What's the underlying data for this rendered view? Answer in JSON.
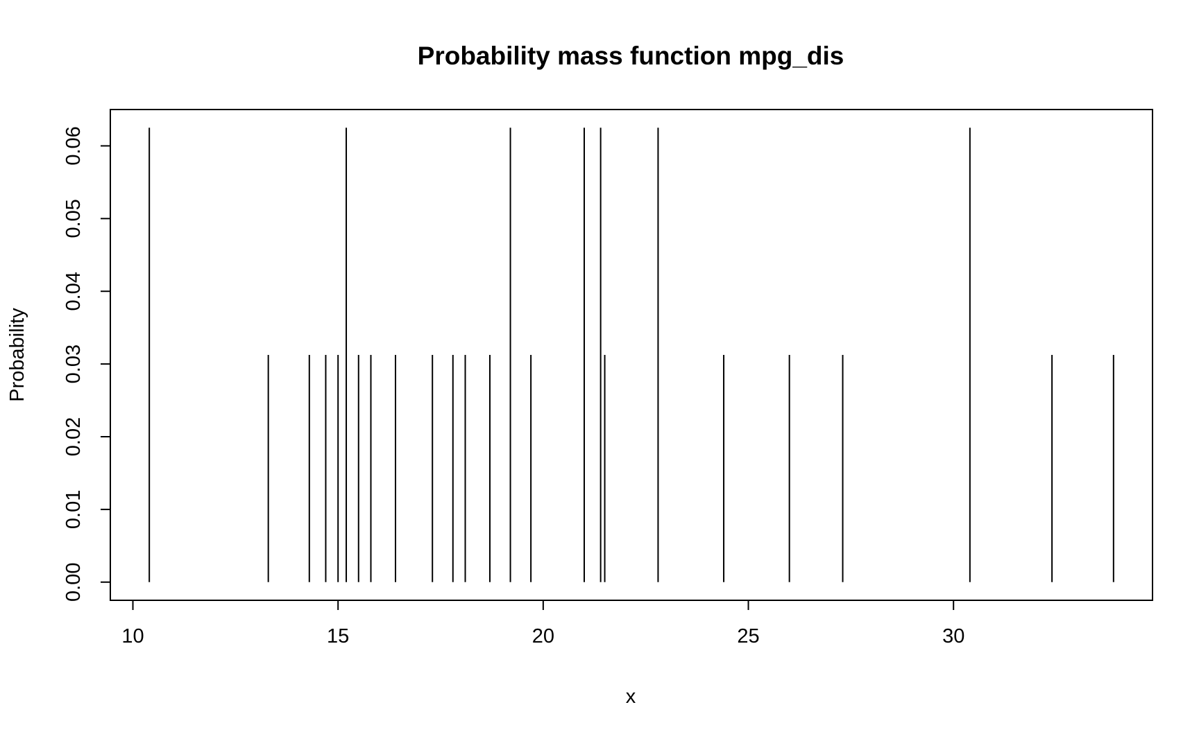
{
  "chart_data": {
    "type": "bar",
    "subtype": "pmf-spikes",
    "title": "Probability mass function mpg_dis",
    "xlabel": "x",
    "ylabel": "Probability",
    "xlim": [
      9.45,
      34.85
    ],
    "ylim": [
      -0.0025,
      0.065
    ],
    "x_ticks": [
      10,
      15,
      20,
      25,
      30
    ],
    "x_tick_labels": [
      "10",
      "15",
      "20",
      "25",
      "30"
    ],
    "y_ticks": [
      0.0,
      0.01,
      0.02,
      0.03,
      0.04,
      0.05,
      0.06
    ],
    "y_tick_labels": [
      "0.00",
      "0.01",
      "0.02",
      "0.03",
      "0.04",
      "0.05",
      "0.06"
    ],
    "grid": false,
    "legend": "none",
    "color": "#000000",
    "series": [
      {
        "x": [
          10.4,
          13.3,
          14.3,
          14.7,
          15.0,
          15.2,
          15.5,
          15.8,
          16.4,
          17.3,
          17.8,
          18.1,
          18.7,
          19.2,
          19.7,
          21.0,
          21.4,
          21.5,
          22.8,
          24.4,
          26.0,
          27.3,
          30.4,
          32.4,
          33.9
        ],
        "values": [
          0.0625,
          0.03125,
          0.03125,
          0.03125,
          0.03125,
          0.0625,
          0.03125,
          0.03125,
          0.03125,
          0.03125,
          0.03125,
          0.03125,
          0.03125,
          0.0625,
          0.03125,
          0.0625,
          0.0625,
          0.03125,
          0.0625,
          0.03125,
          0.03125,
          0.03125,
          0.0625,
          0.03125,
          0.03125
        ]
      }
    ]
  }
}
